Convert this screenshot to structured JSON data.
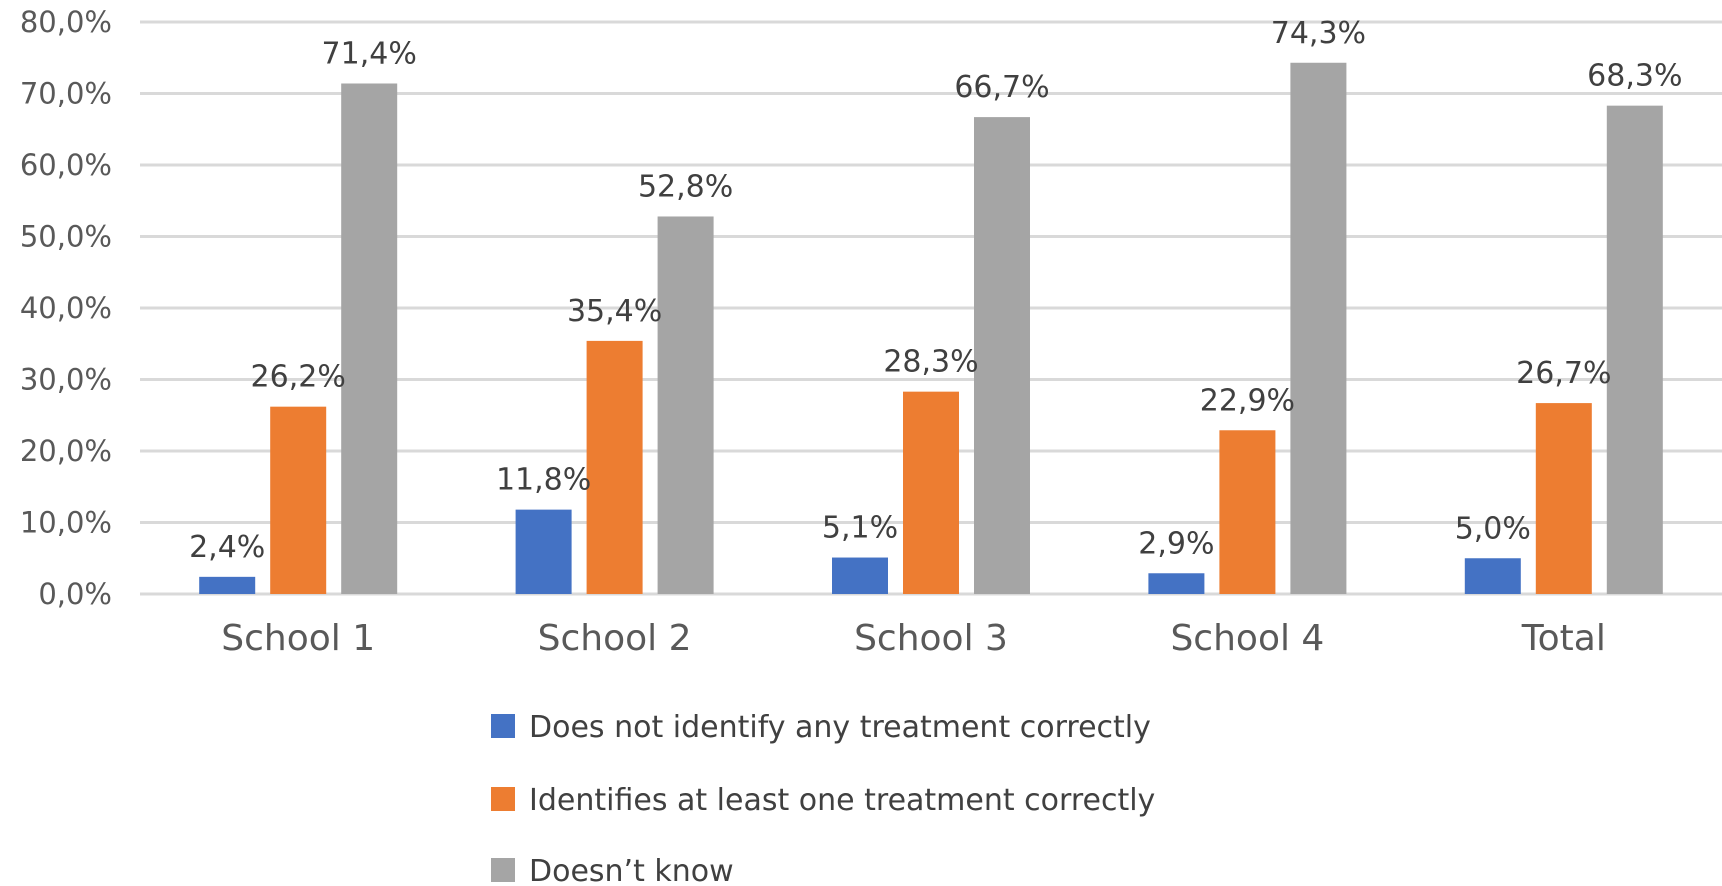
{
  "chart_data": {
    "type": "bar",
    "categories": [
      "School 1",
      "School 2",
      "School 3",
      "School 4",
      "Total"
    ],
    "series": [
      {
        "name": "Does not identify any treatment correctly",
        "color": "#4472C4",
        "values": [
          2.4,
          11.8,
          5.1,
          2.9,
          5.0
        ],
        "labels": [
          "2,4%",
          "11,8%",
          "5,1%",
          "2,9%",
          "5,0%"
        ]
      },
      {
        "name": "Identifies at least one treatment correctly",
        "color": "#ED7D31",
        "values": [
          26.2,
          35.4,
          28.3,
          22.9,
          26.7
        ],
        "labels": [
          "26,2%",
          "35,4%",
          "28,3%",
          "22,9%",
          "26,7%"
        ]
      },
      {
        "name": "Doesn’t know",
        "color": "#A5A5A5",
        "values": [
          71.4,
          52.8,
          66.7,
          74.3,
          68.3
        ],
        "labels": [
          "71,4%",
          "52,8%",
          "66,7%",
          "74,3%",
          "68,3%"
        ]
      }
    ],
    "ylim": [
      0,
      80
    ],
    "yticks": [
      0,
      10,
      20,
      30,
      40,
      50,
      60,
      70,
      80
    ],
    "ytick_labels": [
      "0,0%",
      "10,0%",
      "20,0%",
      "30,0%",
      "40,0%",
      "50,0%",
      "60,0%",
      "70,0%",
      "80,0%"
    ],
    "grid": true,
    "legend_position": "bottom",
    "title": "",
    "xlabel": "",
    "ylabel": ""
  }
}
